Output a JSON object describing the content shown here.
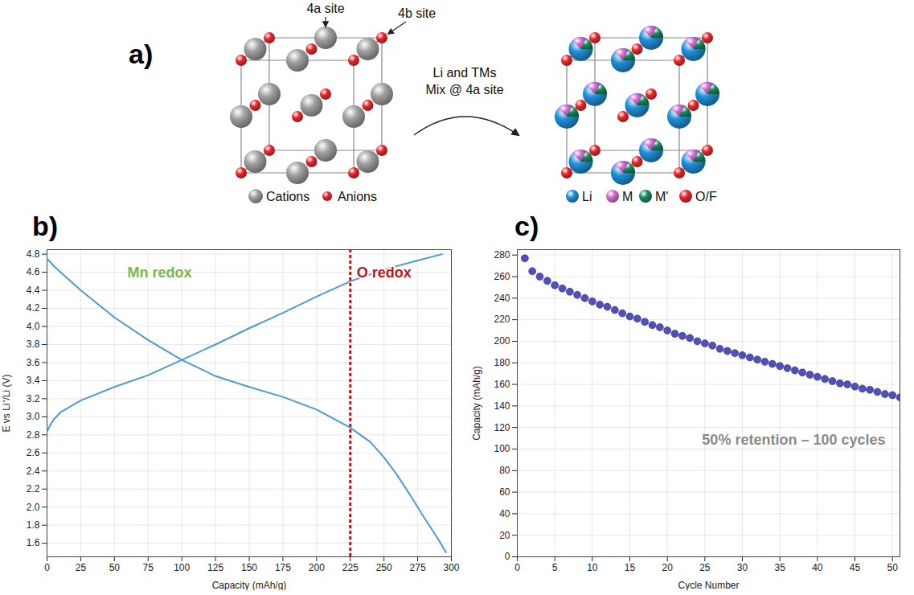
{
  "diagram": {
    "panel_label": "a)",
    "site_labels": [
      "4a site",
      "4b site"
    ],
    "arrow_label": [
      "Li and TMs",
      "Mix @ 4a site"
    ],
    "legend_left": [
      {
        "label": "Cations",
        "color": "#a0a0a0"
      },
      {
        "label": "Anions",
        "color": "#e8262a"
      }
    ],
    "legend_right": [
      {
        "label": "Li",
        "color": "#1e8fd8"
      },
      {
        "label": "M",
        "color": "#d66ad0"
      },
      {
        "label": "M'",
        "color": "#178a5c"
      },
      {
        "label": "O/F",
        "color": "#e8262a"
      }
    ]
  },
  "chart_data": [
    {
      "panel_label": "b)",
      "type": "line",
      "x_label": "Capacity (mAh/g)",
      "y_label": "E vs Li⁺/Li (V)",
      "xlim": [
        0,
        300
      ],
      "xticks": [
        0,
        25,
        50,
        75,
        100,
        125,
        150,
        175,
        200,
        225,
        250,
        275,
        300
      ],
      "ylim": [
        1.45,
        4.85
      ],
      "yticks": [
        1.6,
        1.8,
        {
          "value": 2,
          "label": "2.0"
        },
        2.2,
        2.4,
        2.6,
        2.8,
        {
          "value": 3,
          "label": "3.0"
        },
        3.2,
        3.4,
        3.6,
        3.8,
        {
          "value": 4,
          "label": "4.0"
        },
        4.2,
        4.4,
        4.6,
        4.8
      ],
      "grid": true,
      "annotations": [
        {
          "text": "Mn redox",
          "color": "#7ab648"
        },
        {
          "text": "O redox",
          "color": "#c0121c"
        }
      ],
      "vline": 225,
      "series": [
        {
          "color": "#4e9bcc",
          "x": [
            0,
            2,
            5,
            10,
            25,
            50,
            75,
            100,
            125,
            150,
            175,
            200,
            225,
            250,
            275,
            293
          ],
          "values": [
            2.83,
            2.9,
            2.97,
            3.05,
            3.18,
            3.33,
            3.46,
            3.63,
            3.8,
            3.98,
            4.15,
            4.33,
            4.5,
            4.63,
            4.73,
            4.8
          ]
        },
        {
          "color": "#4e9bcc",
          "x": [
            0,
            5,
            10,
            25,
            50,
            75,
            100,
            125,
            150,
            175,
            200,
            225,
            240,
            250,
            260,
            270,
            280,
            290,
            296
          ],
          "values": [
            4.75,
            4.67,
            4.6,
            4.4,
            4.1,
            3.85,
            3.63,
            3.45,
            3.33,
            3.22,
            3.08,
            2.88,
            2.72,
            2.55,
            2.35,
            2.12,
            1.88,
            1.65,
            1.5
          ]
        }
      ]
    },
    {
      "panel_label": "c)",
      "type": "scatter",
      "x_label": "Cycle Number",
      "y_label": "Capacity (mAh/g)",
      "xlim": [
        0,
        51
      ],
      "xticks": [
        0,
        5,
        10,
        15,
        20,
        25,
        30,
        35,
        40,
        45,
        50
      ],
      "ylim": [
        0,
        285
      ],
      "yticks": [
        0,
        20,
        40,
        60,
        80,
        100,
        120,
        140,
        160,
        180,
        200,
        220,
        240,
        260,
        280
      ],
      "grid": true,
      "marker": "circle",
      "color": "#5250b8",
      "annotations": [
        {
          "text": "50% retention – 100 cycles",
          "color": "#8a8a8a"
        }
      ],
      "x": [
        1,
        2,
        3,
        4,
        5,
        6,
        7,
        8,
        9,
        10,
        11,
        12,
        13,
        14,
        15,
        16,
        17,
        18,
        19,
        20,
        21,
        22,
        23,
        24,
        25,
        26,
        27,
        28,
        29,
        30,
        31,
        32,
        33,
        34,
        35,
        36,
        37,
        38,
        39,
        40,
        41,
        42,
        43,
        44,
        45,
        46,
        47,
        48,
        49,
        50,
        51
      ],
      "values": [
        277,
        265,
        260,
        256,
        252,
        249,
        246,
        243,
        240,
        237,
        234,
        232,
        229,
        226,
        223,
        221,
        218,
        215,
        213,
        210,
        207,
        205,
        203,
        200,
        198,
        196,
        193,
        191,
        189,
        187,
        185,
        183,
        181,
        179,
        177,
        175,
        173,
        171,
        169,
        167,
        165,
        163,
        161,
        160,
        158,
        156,
        155,
        153,
        151,
        150,
        148
      ]
    }
  ]
}
